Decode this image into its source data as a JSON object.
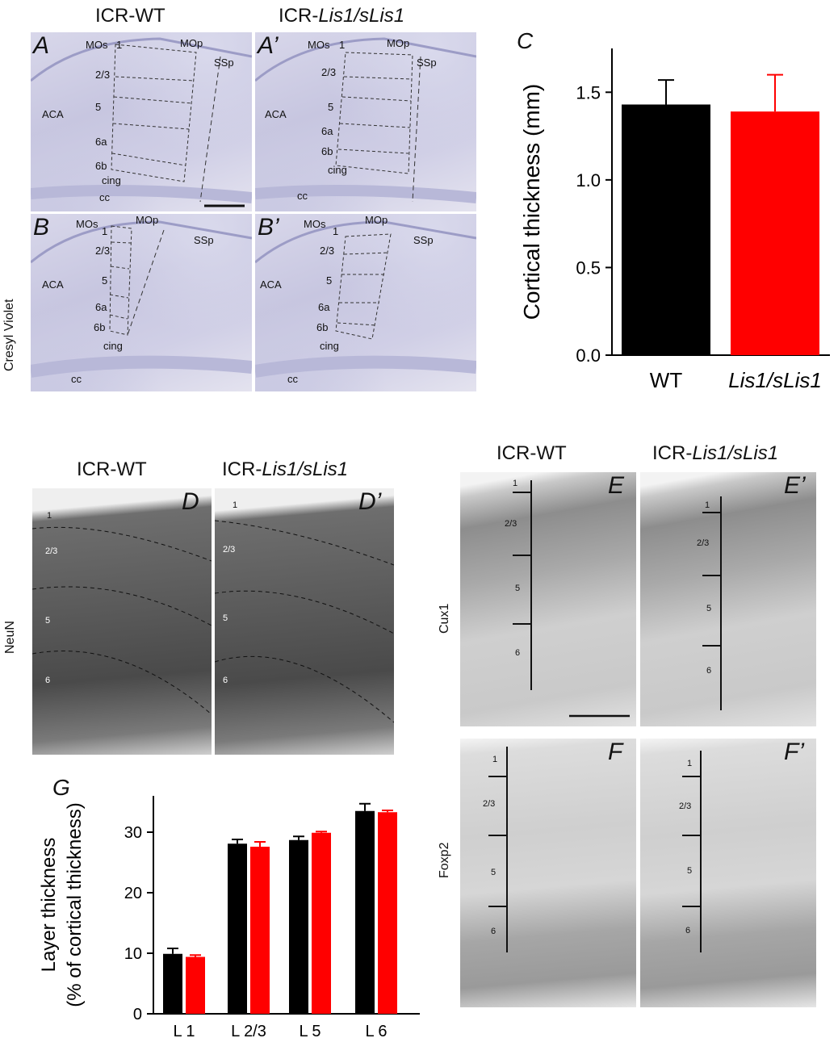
{
  "top": {
    "col_wt": "ICR-WT",
    "col_mut_prefix": "ICR-",
    "col_mut_italic": "Lis1/sLis1",
    "stain_label": "Cresyl Violet",
    "panels": {
      "A": "A",
      "A2": "A’",
      "B": "B",
      "B2": "B’"
    },
    "labels_A": {
      "mos": "MOs",
      "one": "1",
      "mop": "MOp",
      "ssp": "SSp",
      "l23": "2/3",
      "aca": "ACA",
      "l5": "5",
      "l6a": "6a",
      "l6b": "6b",
      "cing": "cing",
      "cc": "cc"
    },
    "labels_B": {
      "mos": "MOs",
      "one": "1",
      "mop": "MOp",
      "ssp": "SSp",
      "l23": "2/3",
      "aca": "ACA",
      "l5": "5",
      "l6a": "6a",
      "l6b": "6b",
      "cing": "cing",
      "cc": "cc"
    }
  },
  "middle": {
    "col_wt": "ICR-WT",
    "col_mut_prefix": "ICR-",
    "col_mut_italic": "Lis1/sLis1",
    "stain_label": "NeuN",
    "panels": {
      "D": "D",
      "D2": "D’"
    },
    "layers": [
      "1",
      "2/3",
      "5",
      "6"
    ]
  },
  "right": {
    "col_wt": "ICR-WT",
    "col_mut_prefix": "ICR-",
    "col_mut_italic": "Lis1/sLis1",
    "cux_label": "Cux1",
    "foxp_label": "Foxp2",
    "panels": {
      "E": "E",
      "E2": "E’",
      "F": "F",
      "F2": "F’"
    },
    "layers": [
      "1",
      "2/3",
      "5",
      "6"
    ]
  },
  "chart_data": [
    {
      "panel": "C",
      "type": "bar",
      "categories": [
        "WT",
        "Lis1/sLis1"
      ],
      "values": [
        1.43,
        1.39
      ],
      "errors": [
        0.14,
        0.21
      ],
      "colors": [
        "#000000",
        "#ff0000"
      ],
      "ylabel": "Cortical thickness (mm)",
      "ylim": [
        0,
        1.75
      ],
      "yticks": [
        "0.0",
        "0.5",
        "1.0",
        "1.5"
      ]
    },
    {
      "panel": "G",
      "type": "bar",
      "categories": [
        "L 1",
        "L 2/3",
        "L 5",
        "L 6"
      ],
      "series": [
        {
          "values": [
            9.9,
            28.1,
            28.7,
            33.5
          ],
          "errors": [
            0.9,
            0.7,
            0.6,
            1.2
          ],
          "color": "#000000"
        },
        {
          "values": [
            9.4,
            27.6,
            29.9,
            33.3
          ],
          "errors": [
            0.3,
            0.8,
            0.2,
            0.3
          ],
          "color": "#ff0000"
        }
      ],
      "ylabel_line1": "Layer thickness",
      "ylabel_line2": "(% of cortical thickness)",
      "ylim": [
        0,
        36
      ],
      "yticks": [
        "0",
        "10",
        "20",
        "30"
      ]
    }
  ]
}
